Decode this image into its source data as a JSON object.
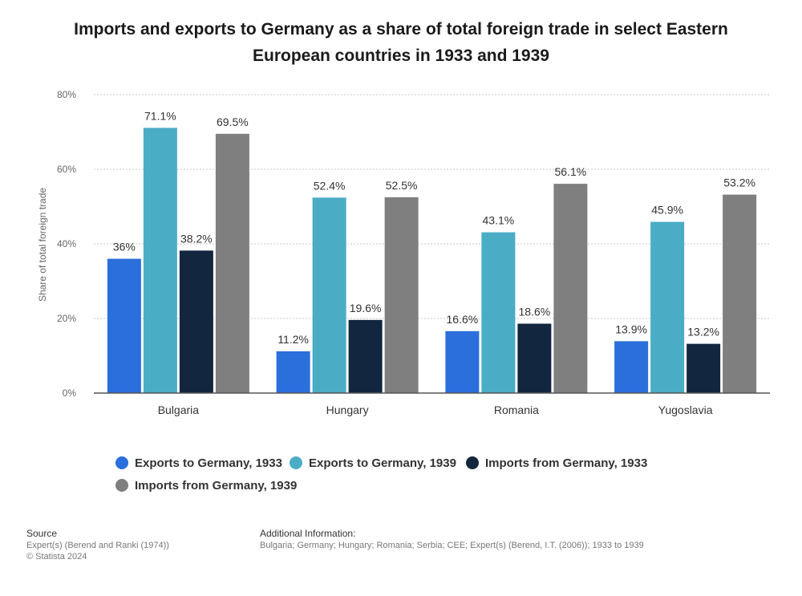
{
  "title": "Imports and exports to Germany as a share of total foreign trade in select Eastern European countries in 1933 and 1939",
  "chart_data": {
    "type": "bar",
    "title": "Imports and exports to Germany as a share of total foreign trade in select Eastern European countries in 1933 and 1939",
    "xlabel": "",
    "ylabel": "Share of total foreign trade",
    "ylim": [
      0,
      80
    ],
    "yticks": [
      "0%",
      "20%",
      "40%",
      "60%",
      "80%"
    ],
    "grid": true,
    "legend_position": "bottom",
    "categories": [
      "Bulgaria",
      "Hungary",
      "Romania",
      "Yugoslavia"
    ],
    "series": [
      {
        "name": "Exports to Germany, 1933",
        "color": "#2a6fdb",
        "values": [
          36,
          11.2,
          16.6,
          13.9
        ],
        "labels": [
          "36%",
          "11.2%",
          "16.6%",
          "13.9%"
        ]
      },
      {
        "name": "Exports to Germany, 1939",
        "color": "#4bacc6",
        "values": [
          71.1,
          52.4,
          43.1,
          45.9
        ],
        "labels": [
          "71.1%",
          "52.4%",
          "43.1%",
          "45.9%"
        ]
      },
      {
        "name": "Imports from Germany, 1933",
        "color": "#13263f",
        "values": [
          38.2,
          19.6,
          18.6,
          13.2
        ],
        "labels": [
          "38.2%",
          "19.6%",
          "18.6%",
          "13.2%"
        ]
      },
      {
        "name": "Imports from Germany, 1939",
        "color": "#7f7f7f",
        "values": [
          69.5,
          52.5,
          56.1,
          53.2
        ],
        "labels": [
          "69.5%",
          "52.5%",
          "56.1%",
          "53.2%"
        ]
      }
    ]
  },
  "footer": {
    "source_heading": "Source",
    "source_line1": "Expert(s) (Berend and Ranki (1974))",
    "source_line2": "© Statista 2024",
    "info_heading": "Additional Information:",
    "info_text": "Bulgaria; Germany; Hungary; Romania; Serbia; CEE; Expert(s) (Berend, I.T. (2006)); 1933 to 1939"
  }
}
